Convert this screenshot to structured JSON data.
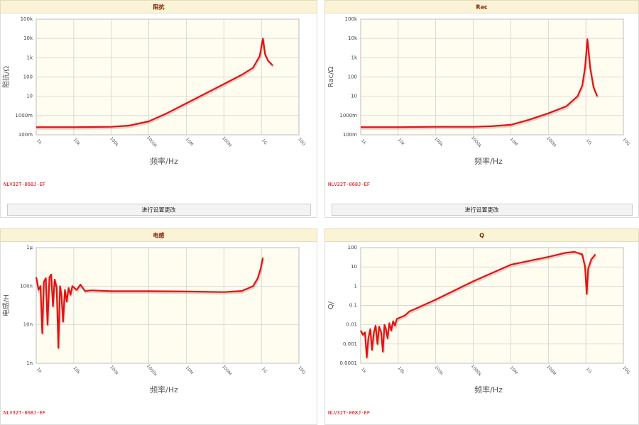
{
  "chart_data": [
    {
      "type": "line",
      "title": "阻抗",
      "xlabel": "频率/Hz",
      "ylabel": "阻抗/Ω",
      "xscale": "log",
      "yscale": "log",
      "grid": true,
      "color": "#e8100f",
      "xlim": [
        1000,
        10000000000
      ],
      "ylim": [
        0.1,
        100000
      ],
      "xticks": [
        {
          "value": 1000,
          "label": "1k"
        },
        {
          "value": 10000,
          "label": "10k"
        },
        {
          "value": 100000,
          "label": "100k"
        },
        {
          "value": 1000000,
          "label": "1000k"
        },
        {
          "value": 10000000,
          "label": "10M"
        },
        {
          "value": 100000000,
          "label": "100M"
        },
        {
          "value": 1000000000,
          "label": "1G"
        },
        {
          "value": 10000000000,
          "label": "10G"
        }
      ],
      "yticks": [
        {
          "value": 100000,
          "label": "100k"
        },
        {
          "value": 10000,
          "label": "10k"
        },
        {
          "value": 1000,
          "label": "1k"
        },
        100,
        10,
        {
          "value": 1,
          "label": "1000m"
        },
        {
          "value": 0.1,
          "label": "100m"
        }
      ],
      "x": [
        1000,
        10000,
        100000,
        300000,
        1000000,
        3000000,
        10000000,
        100000000,
        300000000,
        600000000,
        900000000,
        1100000000,
        1250000000,
        1500000000,
        2000000000
      ],
      "values": [
        0.25,
        0.25,
        0.26,
        0.3,
        0.5,
        1.3,
        4.3,
        43,
        130,
        300,
        1200,
        10000,
        1500,
        700,
        400
      ]
    },
    {
      "type": "line",
      "title": "Rac",
      "xlabel": "频率/Hz",
      "ylabel": "Rac/Ω",
      "xscale": "log",
      "yscale": "log",
      "grid": true,
      "color": "#e8100f",
      "xlim": [
        1000,
        10000000000
      ],
      "ylim": [
        0.1,
        100000
      ],
      "xticks": [
        {
          "value": 1000,
          "label": "1k"
        },
        {
          "value": 10000,
          "label": "10k"
        },
        {
          "value": 100000,
          "label": "100k"
        },
        {
          "value": 1000000,
          "label": "1000k"
        },
        {
          "value": 10000000,
          "label": "10M"
        },
        {
          "value": 100000000,
          "label": "100M"
        },
        {
          "value": 1000000000,
          "label": "1G"
        },
        {
          "value": 10000000000,
          "label": "10G"
        }
      ],
      "yticks": [
        {
          "value": 100000,
          "label": "100k"
        },
        {
          "value": 10000,
          "label": "10k"
        },
        {
          "value": 1000,
          "label": "1k"
        },
        100,
        10,
        {
          "value": 1,
          "label": "1000m"
        },
        {
          "value": 0.1,
          "label": "100m"
        }
      ],
      "x": [
        1000,
        10000,
        100000,
        1000000,
        3000000,
        10000000,
        30000000,
        100000000,
        300000000,
        600000000,
        800000000,
        950000000,
        1100000000,
        1300000000,
        1600000000,
        2000000000
      ],
      "values": [
        0.25,
        0.25,
        0.26,
        0.26,
        0.28,
        0.33,
        0.6,
        1.3,
        3,
        10,
        35,
        300,
        9000,
        300,
        30,
        10
      ]
    },
    {
      "type": "line",
      "title": "电感",
      "xlabel": "频率/Hz",
      "ylabel": "电感/H",
      "xscale": "log",
      "yscale": "log",
      "grid": true,
      "color": "#e8100f",
      "xlim": [
        1000,
        10000000000
      ],
      "ylim": [
        1e-09,
        1e-06
      ],
      "xticks": [
        {
          "value": 1000,
          "label": "1k"
        },
        {
          "value": 10000,
          "label": "10k"
        },
        {
          "value": 100000,
          "label": "100k"
        },
        {
          "value": 1000000,
          "label": "1000k"
        },
        {
          "value": 10000000,
          "label": "10M"
        },
        {
          "value": 100000000,
          "label": "100M"
        },
        {
          "value": 1000000000,
          "label": "1G"
        },
        {
          "value": 10000000000,
          "label": "10G"
        }
      ],
      "yticks": [
        {
          "value": 1e-06,
          "label": "1μ"
        },
        {
          "value": 1e-07,
          "label": "100n"
        },
        {
          "value": 1e-08,
          "label": "10n"
        },
        {
          "value": 1e-09,
          "label": "1n"
        }
      ],
      "x": [
        1000,
        1150,
        1300,
        1450,
        1600,
        1800,
        2000,
        2250,
        2500,
        2800,
        3100,
        3500,
        3900,
        4300,
        4700,
        5200,
        5800,
        6500,
        7300,
        8200,
        9200,
        12000,
        15000,
        20000,
        30000,
        100000,
        1000000,
        10000000,
        100000000,
        300000000,
        600000000,
        800000000,
        950000000,
        1100000000
      ],
      "values": [
        1.7e-07,
        8e-08,
        1e-07,
        6e-09,
        1.3e-07,
        1.6e-07,
        1e-08,
        1.7e-07,
        2e-07,
        3e-08,
        1.5e-07,
        9e-08,
        2.5e-09,
        1e-07,
        6e-08,
        1.2e-08,
        8e-08,
        4e-08,
        9e-08,
        6e-08,
        1e-07,
        8e-08,
        1.1e-07,
        7.5e-08,
        7.8e-08,
        7.4e-08,
        7.4e-08,
        7.3e-08,
        7e-08,
        7.5e-08,
        1e-07,
        1.6e-07,
        2.8e-07,
        5.5e-07
      ]
    },
    {
      "type": "line",
      "title": "Q",
      "xlabel": "频率/Hz",
      "ylabel": "Q/",
      "xscale": "log",
      "yscale": "log",
      "grid": true,
      "color": "#e8100f",
      "xlim": [
        1000,
        10000000000
      ],
      "ylim": [
        0.0001,
        100
      ],
      "xticks": [
        {
          "value": 1000,
          "label": "1k"
        },
        {
          "value": 10000,
          "label": "10k"
        },
        {
          "value": 100000,
          "label": "100k"
        },
        {
          "value": 1000000,
          "label": "1000k"
        },
        {
          "value": 10000000,
          "label": "10M"
        },
        {
          "value": 100000000,
          "label": "100M"
        },
        {
          "value": 1000000000,
          "label": "1G"
        },
        {
          "value": 10000000000,
          "label": "10G"
        }
      ],
      "yticks": [
        100,
        10,
        1,
        0.1,
        0.01,
        0.001,
        0.0001
      ],
      "x": [
        1000,
        1150,
        1300,
        1450,
        1600,
        1800,
        2000,
        2250,
        2500,
        2800,
        3100,
        3500,
        3900,
        4300,
        4700,
        5200,
        5800,
        6500,
        7300,
        8200,
        9200,
        12000,
        15000,
        20000,
        30000,
        100000,
        1000000,
        10000000,
        100000000,
        300000000,
        500000000,
        800000000,
        950000000,
        1050000000,
        1150000000,
        1400000000,
        1800000000
      ],
      "values": [
        0.005,
        0.003,
        0.004,
        0.0002,
        0.002,
        0.006,
        0.0005,
        0.004,
        0.009,
        0.001,
        0.008,
        0.004,
        0.0004,
        0.01,
        0.006,
        0.002,
        0.012,
        0.005,
        0.015,
        0.009,
        0.02,
        0.025,
        0.03,
        0.05,
        0.07,
        0.2,
        1.8,
        13,
        33,
        55,
        60,
        45,
        10,
        0.4,
        8,
        25,
        45
      ]
    }
  ],
  "panels": [
    {
      "part": "NLV32T-068J-EF",
      "button": "进行设置更改"
    },
    {
      "part": "NLV32T-068J-EF",
      "button": "进行设置更改"
    },
    {
      "part": "NLV32T-068J-EF"
    },
    {
      "part": "NLV32T-068J-EF"
    }
  ]
}
